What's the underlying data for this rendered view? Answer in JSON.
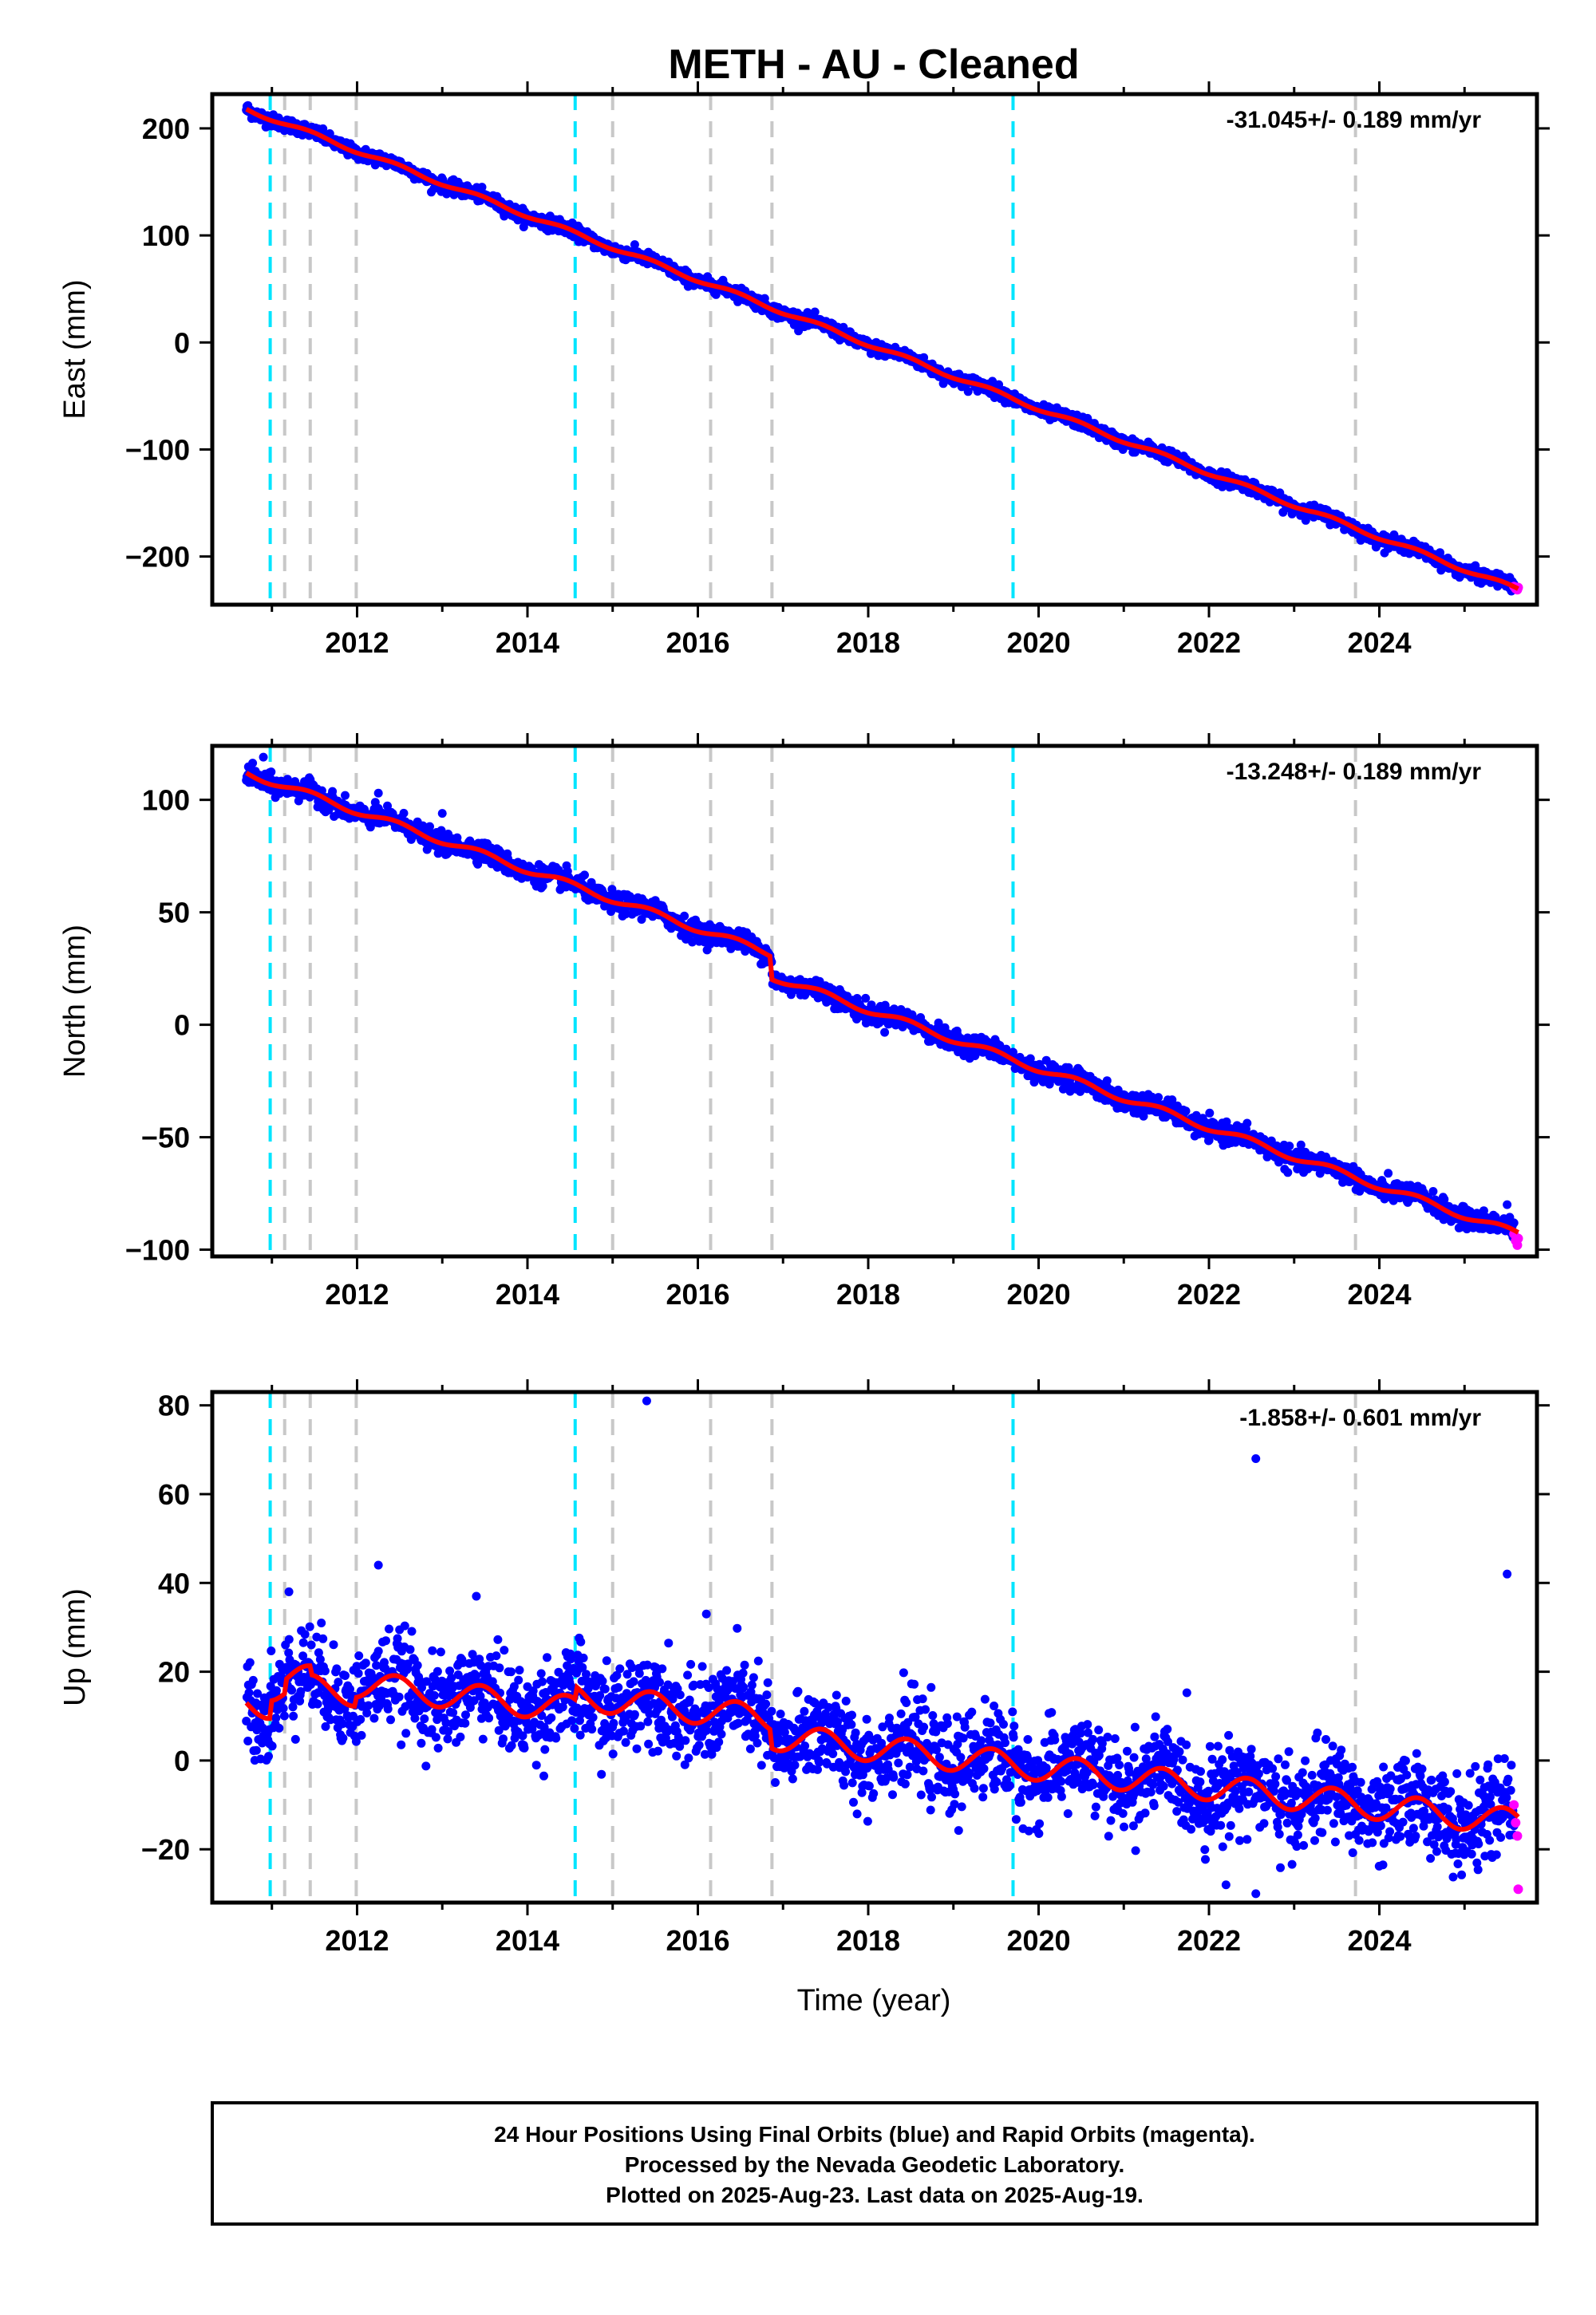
{
  "page_title": "METH  - AU - Cleaned",
  "xlabel": "Time (year)",
  "footer": {
    "line1": "24 Hour Positions Using Final Orbits (blue) and Rapid Orbits (magenta).",
    "line2": "Processed by the Nevada Geodetic Laboratory.",
    "line3": "Plotted on 2025-Aug-23. Last data on 2025-Aug-19."
  },
  "colors": {
    "final_orbits": "#0000ff",
    "rapid_orbits": "#ff00ff",
    "model_fit": "#ff0000",
    "equipment_change": "#00e5ff",
    "other_event": "#c8c8c8"
  },
  "chart_data": [
    {
      "type": "scatter",
      "component": "east",
      "ylabel": "East (mm)",
      "rate_text": "-31.045+/- 0.189 mm/yr",
      "xlim": [
        2010.3,
        2025.85
      ],
      "ylim": [
        -245,
        232
      ],
      "xticks": [
        2012,
        2014,
        2016,
        2018,
        2020,
        2022,
        2024
      ],
      "xtick_labels": [
        "2012",
        "2014",
        "2016",
        "2018",
        "2020",
        "2022",
        "2024"
      ],
      "yticks": [
        -200,
        -100,
        0,
        100,
        200
      ],
      "ytick_labels": [
        "−200",
        "−100",
        "0",
        "100",
        "200"
      ],
      "grid": false,
      "data_range": [
        2010.7,
        2025.63
      ],
      "trend": {
        "start_value": 218,
        "end_value": -231
      },
      "offsets": [],
      "scatter_std": 3,
      "seasonal_amplitude": 2,
      "rapid_points": [
        [
          2025.58,
          -228
        ],
        [
          2025.6,
          -230
        ],
        [
          2025.62,
          -231
        ],
        [
          2025.63,
          -229
        ]
      ],
      "outliers": []
    },
    {
      "type": "scatter",
      "component": "north",
      "ylabel": "North (mm)",
      "rate_text": "-13.248+/- 0.189 mm/yr",
      "xlim": [
        2010.3,
        2025.85
      ],
      "ylim": [
        -103,
        124
      ],
      "xticks": [
        2012,
        2014,
        2016,
        2018,
        2020,
        2022,
        2024
      ],
      "xtick_labels": [
        "2012",
        "2014",
        "2016",
        "2018",
        "2020",
        "2022",
        "2024"
      ],
      "yticks": [
        -100,
        -50,
        0,
        50,
        100
      ],
      "ytick_labels": [
        "−100",
        "−50",
        "0",
        "50",
        "100"
      ],
      "grid": false,
      "data_range": [
        2010.7,
        2025.63
      ],
      "trend": {
        "start_value": 112,
        "end_value": -93
      },
      "offsets": [
        [
          2016.87,
          -10
        ]
      ],
      "scatter_std": 2.2,
      "seasonal_amplitude": 1.5,
      "rapid_points": [
        [
          2025.58,
          -93
        ],
        [
          2025.6,
          -96
        ],
        [
          2025.62,
          -98
        ],
        [
          2025.63,
          -95
        ]
      ],
      "outliers": [
        [
          2010.9,
          119
        ],
        [
          2012.25,
          103
        ],
        [
          2013.0,
          94
        ],
        [
          2025.5,
          -80
        ],
        [
          2020.2,
          -21
        ]
      ]
    },
    {
      "type": "scatter",
      "component": "up",
      "ylabel": "Up (mm)",
      "rate_text": "-1.858+/- 0.601 mm/yr",
      "xlim": [
        2010.3,
        2025.85
      ],
      "ylim": [
        -32,
        83
      ],
      "xticks": [
        2012,
        2014,
        2016,
        2018,
        2020,
        2022,
        2024
      ],
      "xtick_labels": [
        "2012",
        "2014",
        "2016",
        "2018",
        "2020",
        "2022",
        "2024"
      ],
      "yticks": [
        -20,
        0,
        20,
        40,
        60,
        80
      ],
      "ytick_labels": [
        "−20",
        "0",
        "20",
        "40",
        "60",
        "80"
      ],
      "grid": false,
      "data_range": [
        2010.7,
        2025.63
      ],
      "trend": {
        "start_value": 13,
        "end_value": -14
      },
      "offsets": [
        [
          2010.98,
          4
        ],
        [
          2011.15,
          3
        ],
        [
          2011.45,
          -2
        ],
        [
          2011.99,
          2
        ],
        [
          2014.56,
          3
        ],
        [
          2016.87,
          -4
        ]
      ],
      "scatter_std": 5,
      "seasonal_amplitude": 3,
      "rapid_points": [
        [
          2025.58,
          -10
        ],
        [
          2025.6,
          -14
        ],
        [
          2025.62,
          -17
        ],
        [
          2025.63,
          -29
        ]
      ],
      "outliers": [
        [
          2015.4,
          81
        ],
        [
          2022.55,
          68
        ],
        [
          2025.5,
          42
        ],
        [
          2012.25,
          44
        ],
        [
          2013.4,
          37
        ],
        [
          2016.1,
          33
        ],
        [
          2011.2,
          38
        ],
        [
          2022.2,
          -28
        ],
        [
          2022.55,
          -30
        ]
      ]
    }
  ],
  "events": {
    "equipment_changes": [
      2010.98,
      2014.56,
      2019.7
    ],
    "other_events": [
      2011.15,
      2011.45,
      2011.99,
      2015.0,
      2016.15,
      2016.87,
      2023.72
    ]
  }
}
